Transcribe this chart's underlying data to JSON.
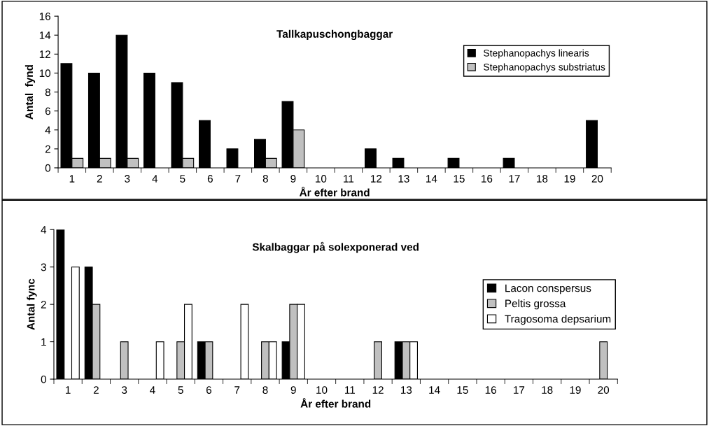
{
  "chart_data": [
    {
      "type": "bar",
      "title": "Tallkapuschongbaggar",
      "xlabel": "År efter brand",
      "ylabel": "Antal  fynd",
      "categories": [
        "1",
        "2",
        "3",
        "4",
        "5",
        "6",
        "7",
        "8",
        "9",
        "10",
        "11",
        "12",
        "13",
        "14",
        "15",
        "16",
        "17",
        "18",
        "19",
        "20"
      ],
      "series": [
        {
          "name": "Stephanopachys linearis",
          "color": "#000000",
          "values": [
            11,
            10,
            14,
            10,
            9,
            5,
            2,
            3,
            7,
            0,
            0,
            2,
            1,
            0,
            1,
            0,
            1,
            0,
            0,
            5
          ]
        },
        {
          "name": "Stephanopachys substriatus",
          "color": "#c0c0c0",
          "values": [
            1,
            1,
            1,
            0,
            1,
            0,
            0,
            1,
            4,
            0,
            0,
            0,
            0,
            0,
            0,
            0,
            0,
            0,
            0,
            0
          ]
        }
      ],
      "ylim": [
        0,
        16
      ],
      "yticks": [
        0,
        2,
        4,
        6,
        8,
        10,
        12,
        14,
        16
      ],
      "grid": false,
      "legend": "top right"
    },
    {
      "type": "bar",
      "title": "Skalbaggar på solexponerad ved",
      "xlabel": "År efter brand",
      "ylabel": "Antal fync",
      "categories": [
        "1",
        "2",
        "3",
        "4",
        "5",
        "6",
        "7",
        "8",
        "9",
        "10",
        "11",
        "12",
        "13",
        "14",
        "15",
        "16",
        "17",
        "18",
        "19",
        "20"
      ],
      "series": [
        {
          "name": "Lacon conspersus",
          "color": "#000000",
          "values": [
            4,
            3,
            0,
            0,
            0,
            1,
            0,
            0,
            1,
            0,
            0,
            0,
            1,
            0,
            0,
            0,
            0,
            0,
            0,
            0
          ]
        },
        {
          "name": "Peltis grossa",
          "color": "#c0c0c0",
          "values": [
            0,
            2,
            1,
            0,
            1,
            1,
            0,
            1,
            2,
            0,
            0,
            1,
            1,
            0,
            0,
            0,
            0,
            0,
            0,
            1
          ]
        },
        {
          "name": "Tragosoma depsarium",
          "color": "#ffffff",
          "values": [
            3,
            0,
            0,
            1,
            2,
            0,
            2,
            1,
            2,
            0,
            0,
            0,
            1,
            0,
            0,
            0,
            0,
            0,
            0,
            0
          ]
        }
      ],
      "ylim": [
        0,
        4
      ],
      "yticks": [
        0,
        1,
        2,
        3,
        4
      ],
      "grid": false,
      "legend": "right"
    }
  ]
}
